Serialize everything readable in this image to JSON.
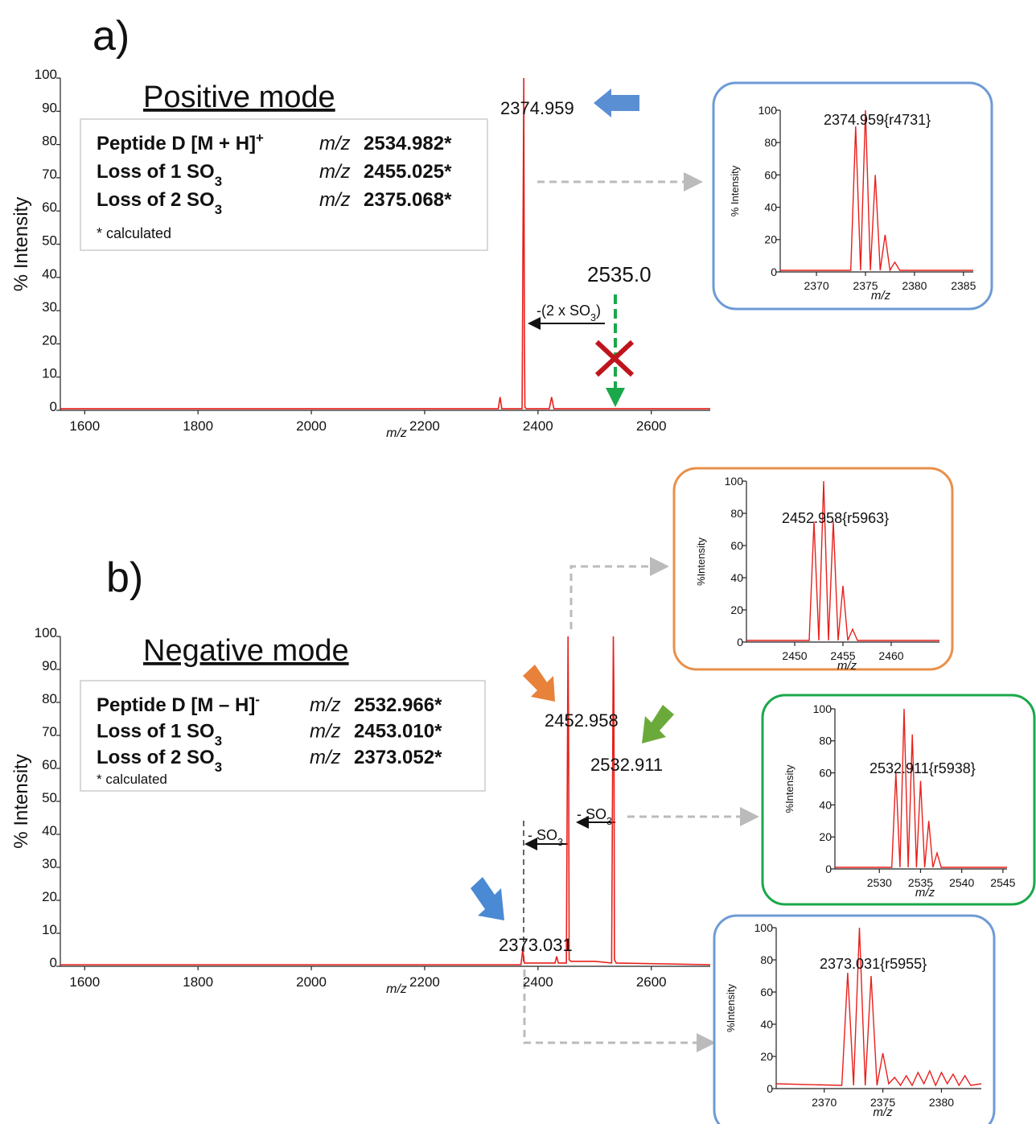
{
  "chart_data": [
    {
      "type": "line",
      "panel_label": "a)",
      "title": "Positive mode",
      "color": "#e8201c",
      "x": [
        1557,
        2330,
        2333,
        2336,
        2372,
        2374.959,
        2376,
        2377,
        2379,
        2420,
        2424,
        2428,
        2704
      ],
      "values": [
        0.5,
        0.5,
        4,
        0.5,
        0.5,
        100,
        24,
        1,
        0.5,
        0.5,
        4,
        0.5,
        0.5
      ],
      "xlim": [
        1557,
        2704
      ],
      "ylim": [
        0,
        100
      ],
      "xticks": [
        1600,
        1800,
        2000,
        2200,
        2400,
        2600
      ],
      "yticks": [
        0,
        10,
        20,
        30,
        40,
        50,
        60,
        70,
        80,
        90,
        100
      ],
      "xlabel": "m/z",
      "ylabel": "% Intensity",
      "legend": [
        {
          "name": "Peptide D [M + H]",
          "sup": "+",
          "color": "#1aa84a",
          "mz_label": "m/z",
          "mz": "2534.982*"
        },
        {
          "name": "Loss of 1 SO",
          "sub": "3",
          "color": "#e8904a",
          "mz_label": "m/z",
          "mz": "2455.025*"
        },
        {
          "name": "Loss of 2 SO",
          "sub": "3",
          "color": "#6e9bd6",
          "mz_label": "m/z",
          "mz": "2375.068*"
        }
      ],
      "legend_note": "* calculated",
      "annotations": [
        {
          "text": "2374.959"
        },
        {
          "text": "2535.0"
        },
        {
          "text": "-(2 x SO",
          "sub": "3",
          "after": ")"
        }
      ]
    },
    {
      "type": "line",
      "panel_label": "b)",
      "title": "Negative mode",
      "color": "#e8201c",
      "x": [
        1557,
        2370,
        2373.031,
        2376,
        2430,
        2433,
        2436,
        2450,
        2452.958,
        2454,
        2455,
        2458,
        2500,
        2530,
        2532.911,
        2534,
        2535,
        2538,
        2704
      ],
      "values": [
        0.5,
        0.5,
        5,
        1,
        1,
        3,
        1,
        1,
        100,
        70,
        2,
        1.5,
        1.5,
        1,
        100,
        84,
        2,
        1,
        0.5
      ],
      "xlim": [
        1557,
        2704
      ],
      "ylim": [
        0,
        100
      ],
      "xticks": [
        1600,
        1800,
        2000,
        2200,
        2400,
        2600
      ],
      "yticks": [
        0,
        10,
        20,
        30,
        40,
        50,
        60,
        70,
        80,
        90,
        100
      ],
      "xlabel": "m/z",
      "ylabel": "% Intensity",
      "legend": [
        {
          "name": "Peptide D [M – H]",
          "sup": "-",
          "color": "#1aa84a",
          "mz_label": "m/z",
          "mz": "2532.966*"
        },
        {
          "name": "Loss of 1 SO",
          "sub": "3",
          "color": "#e8904a",
          "mz_label": "m/z",
          "mz": "2453.010*"
        },
        {
          "name": "Loss of 2 SO",
          "sub": "3",
          "color": "#6e9bd6",
          "mz_label": "m/z",
          "mz": "2373.052*"
        }
      ],
      "legend_note": "* calculated",
      "annotations": [
        {
          "text": "2452.958"
        },
        {
          "text": "2532.911"
        },
        {
          "text": "2373.031"
        },
        {
          "text": "- SO",
          "sub": "3"
        },
        {
          "text": "- SO",
          "sub": "3"
        }
      ]
    },
    {
      "type": "line",
      "color": "#e8201c",
      "frame_color": "#6e9bd6",
      "x": [
        2366.3,
        2373.5,
        2374,
        2374.5,
        2375,
        2375.5,
        2376,
        2376.5,
        2377,
        2377.5,
        2378,
        2378.5,
        2386
      ],
      "values": [
        1,
        1,
        90,
        1,
        100,
        1,
        60,
        1,
        23,
        1,
        6,
        1,
        1
      ],
      "xlim": [
        2366.3,
        2386
      ],
      "ylim": [
        0,
        100
      ],
      "xticks": [
        2370,
        2375,
        2380,
        2385
      ],
      "yticks": [
        0,
        20,
        40,
        60,
        80,
        100
      ],
      "xlabel": "m/z",
      "ylabel": "% Intensity",
      "peak_label": "2374.959{r4731}"
    },
    {
      "type": "line",
      "color": "#e8201c",
      "frame_color": "#e8904a",
      "x": [
        2445,
        2451.5,
        2452,
        2452.5,
        2453,
        2453.5,
        2454,
        2454.5,
        2455,
        2455.5,
        2456,
        2456.5,
        2465
      ],
      "values": [
        1,
        1,
        75,
        1,
        100,
        1,
        75,
        1,
        35,
        1,
        8,
        1,
        1
      ],
      "xlim": [
        2445,
        2465
      ],
      "ylim": [
        0,
        100
      ],
      "xticks": [
        2450,
        2455,
        2460
      ],
      "yticks": [
        0,
        20,
        40,
        60,
        80,
        100
      ],
      "xlabel": "m/z",
      "ylabel": "%Intensity",
      "peak_label": "2452.958{r5963}"
    },
    {
      "type": "line",
      "color": "#e8201c",
      "frame_color": "#1aa84a",
      "x": [
        2524.6,
        2531.5,
        2532,
        2532.5,
        2533,
        2533.5,
        2534,
        2534.5,
        2535,
        2535.5,
        2536,
        2536.5,
        2537,
        2537.5,
        2545.5
      ],
      "values": [
        1,
        1,
        60,
        1,
        100,
        1,
        84,
        1,
        55,
        1,
        30,
        1,
        10,
        1,
        1
      ],
      "xlim": [
        2524.6,
        2545.5
      ],
      "ylim": [
        0,
        100
      ],
      "xticks": [
        2530,
        2535,
        2540,
        2545
      ],
      "yticks": [
        0,
        20,
        40,
        60,
        80,
        100
      ],
      "xlabel": "m/z",
      "ylabel": "%Intensity",
      "peak_label": "2532.911{r5938}"
    },
    {
      "type": "line",
      "color": "#e8201c",
      "frame_color": "#6e9bd6",
      "x": [
        2365.9,
        2371.5,
        2372,
        2372.5,
        2373,
        2373.5,
        2374,
        2374.5,
        2375,
        2375.5,
        2376,
        2376.5,
        2377,
        2377.5,
        2378,
        2378.5,
        2379,
        2379.5,
        2380,
        2380.5,
        2381,
        2381.5,
        2382,
        2382.5,
        2383.4
      ],
      "values": [
        3,
        2,
        72,
        2,
        100,
        2,
        70,
        2,
        22,
        3,
        7,
        2,
        8,
        2,
        10,
        3,
        11,
        2,
        10,
        3,
        9,
        2,
        8,
        2,
        3
      ],
      "xlim": [
        2365.9,
        2383.4
      ],
      "ylim": [
        0,
        100
      ],
      "xticks": [
        2370,
        2375,
        2380
      ],
      "yticks": [
        0,
        20,
        40,
        60,
        80,
        100
      ],
      "xlabel": "m/z",
      "ylabel": "%Intensity",
      "peak_label": "2373.031{r5955}"
    }
  ]
}
